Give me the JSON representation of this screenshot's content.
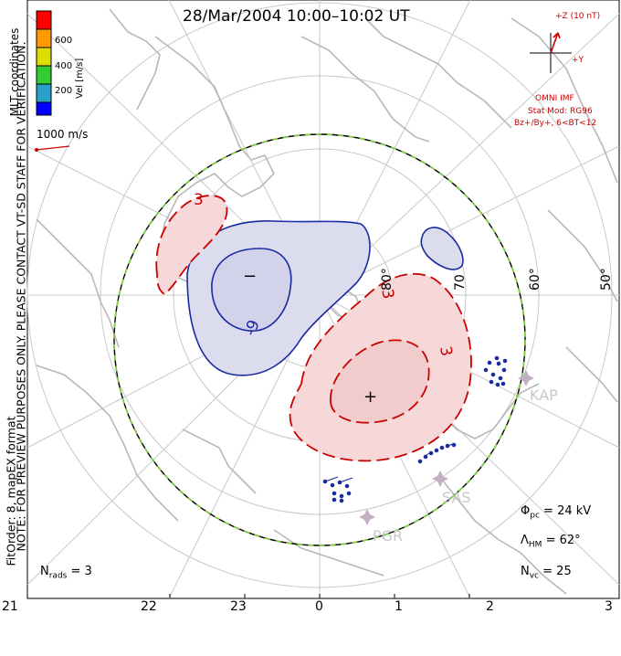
{
  "header": {
    "title": "28/Mar/2004  10:00–10:02 UT"
  },
  "watermark": {
    "note_line1": "NOTE: FOR PREVIEW PURPOSES ONLY. PLEASE CONTACT VT-SD STAFF FOR VERIFICATION.",
    "note_line2": "FitOrder: 8, mapEX format"
  },
  "coords_label": "MLT coordinates",
  "colorbar": {
    "unit": "Vel [m/s]",
    "ticks": [
      "600",
      "400",
      "200"
    ],
    "colors": [
      "#0000ff",
      "#2aa0c8",
      "#33cc33",
      "#dddd00",
      "#ff9900",
      "#ff0000"
    ]
  },
  "reference_vector": {
    "label": "1000 m/s",
    "color": "#cc0000"
  },
  "imf_panel": {
    "bz_label": "+Z (10 nT)",
    "by_label": "+Y",
    "source": "OMNI IMF",
    "stat_model": "Stat Mod: RG96",
    "conditions": "Bz+/By+, 6<BT<12"
  },
  "latitude_labels": [
    "80°",
    "70",
    "60°",
    "50°"
  ],
  "contour_labels": {
    "negative_peak": "−",
    "positive_peak": "+",
    "minus_nine": "-9",
    "plus_three_left": "3",
    "plus_three_right": "3",
    "minus_three": "-3"
  },
  "radars": [
    "KAP",
    "SAS",
    "PGR"
  ],
  "stats": {
    "phi_pc_symbol": "Φ",
    "phi_pc_sub": "pc",
    "phi_pc_value": "= 24 kV",
    "lambda_hm_symbol": "Λ",
    "lambda_hm_sub": "HM",
    "lambda_hm_value": "= 62°",
    "n_vc_symbol": "N",
    "n_vc_sub": "vc",
    "n_vc_value": "= 25",
    "n_rads_symbol": "N",
    "n_rads_sub": "rads",
    "n_rads_value": "= 3"
  },
  "mlt_axis": [
    "21",
    "22",
    "23",
    "0",
    "1",
    "2",
    "3"
  ],
  "colors": {
    "negative_cell_line": "#1a2aa0",
    "negative_cell_fill": "#dcdcef",
    "positive_cell_line": "#cc0000",
    "positive_cell_fill": "#f6d8d8",
    "heppner_maynard": "#7fcc3f",
    "grid": "#c8c8c8",
    "coastline": "#b8b8b8",
    "velocity_vector": "#1a2aa0",
    "radar_marker": "#c4aec4"
  }
}
